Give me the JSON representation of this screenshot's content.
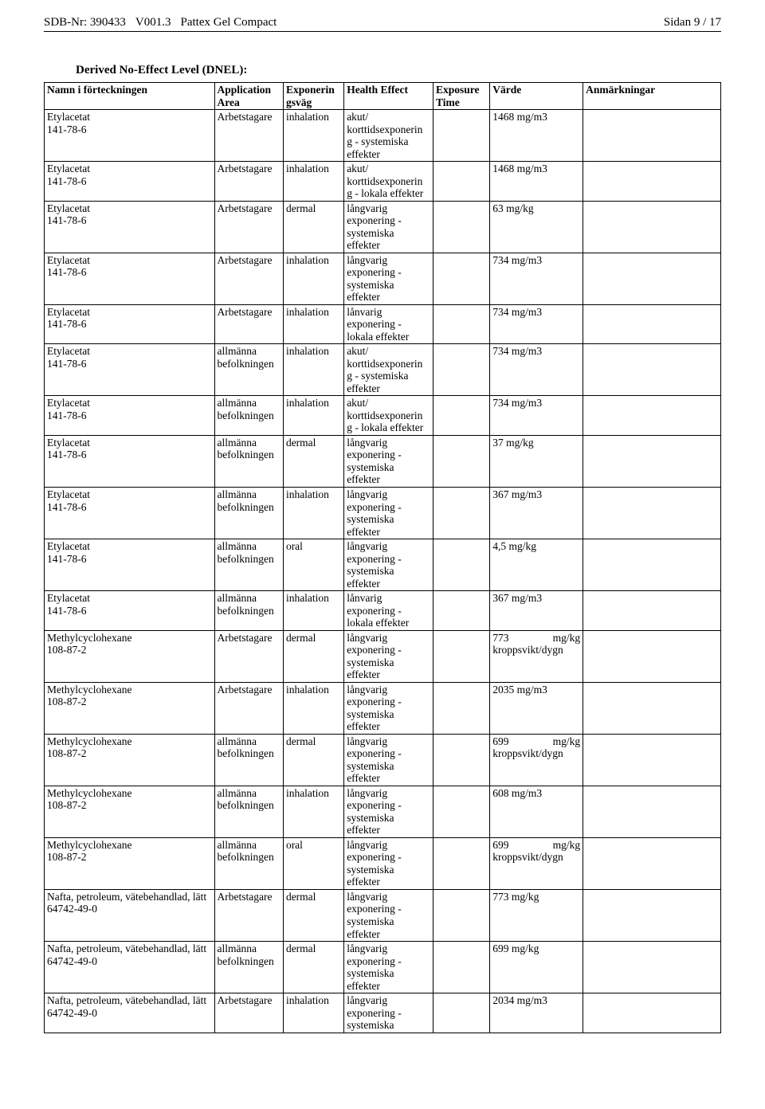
{
  "header": {
    "sdb_label": "SDB-Nr: 390433",
    "version": "V001.3",
    "product": "Pattex Gel Compact",
    "page_label": "Sidan 9 / 17"
  },
  "section_title": "Derived No-Effect Level (DNEL):",
  "columns": [
    "Namn i förteckningen",
    "Application Area",
    "Exponerin gsväg",
    "Health Effect",
    "Exposure Time",
    "Värde",
    "Anmärkningar"
  ],
  "rows": [
    {
      "c1": "Etylacetat\n141-78-6",
      "c2": "Arbetstagare",
      "c3": "inhalation",
      "c4": "akut/\nkorttidsexponerin\ng - systemiska\neffekter",
      "c5": "",
      "c6": "1468 mg/m3",
      "c7": ""
    },
    {
      "c1": "Etylacetat\n141-78-6",
      "c2": "Arbetstagare",
      "c3": "inhalation",
      "c4": "akut/\nkorttidsexponerin\ng - lokala effekter",
      "c5": "",
      "c6": "1468 mg/m3",
      "c7": ""
    },
    {
      "c1": "Etylacetat\n141-78-6",
      "c2": "Arbetstagare",
      "c3": "dermal",
      "c4": "långvarig\nexponering -\nsystemiska\neffekter",
      "c5": "",
      "c6": "63 mg/kg",
      "c7": ""
    },
    {
      "c1": "Etylacetat\n141-78-6",
      "c2": "Arbetstagare",
      "c3": "inhalation",
      "c4": "långvarig\nexponering -\nsystemiska\neffekter",
      "c5": "",
      "c6": "734 mg/m3",
      "c7": ""
    },
    {
      "c1": "Etylacetat\n141-78-6",
      "c2": "Arbetstagare",
      "c3": "inhalation",
      "c4": "lånvarig\nexponering -\nlokala effekter",
      "c5": "",
      "c6": "734 mg/m3",
      "c7": ""
    },
    {
      "c1": "Etylacetat\n141-78-6",
      "c2": "allmänna\nbefolkningen",
      "c3": "inhalation",
      "c4": "akut/\nkorttidsexponerin\ng - systemiska\neffekter",
      "c5": "",
      "c6": "734 mg/m3",
      "c7": ""
    },
    {
      "c1": "Etylacetat\n141-78-6",
      "c2": "allmänna\nbefolkningen",
      "c3": "inhalation",
      "c4": "akut/\nkorttidsexponerin\ng - lokala effekter",
      "c5": "",
      "c6": "734 mg/m3",
      "c7": ""
    },
    {
      "c1": "Etylacetat\n141-78-6",
      "c2": "allmänna\nbefolkningen",
      "c3": "dermal",
      "c4": "långvarig\nexponering -\nsystemiska\neffekter",
      "c5": "",
      "c6": "37 mg/kg",
      "c7": ""
    },
    {
      "c1": "Etylacetat\n141-78-6",
      "c2": "allmänna\nbefolkningen",
      "c3": "inhalation",
      "c4": "långvarig\nexponering -\nsystemiska\neffekter",
      "c5": "",
      "c6": "367 mg/m3",
      "c7": ""
    },
    {
      "c1": "Etylacetat\n141-78-6",
      "c2": "allmänna\nbefolkningen",
      "c3": "oral",
      "c4": "långvarig\nexponering -\nsystemiska\neffekter",
      "c5": "",
      "c6": "4,5 mg/kg",
      "c7": ""
    },
    {
      "c1": "Etylacetat\n141-78-6",
      "c2": "allmänna\nbefolkningen",
      "c3": "inhalation",
      "c4": "lånvarig\nexponering -\nlokala effekter",
      "c5": "",
      "c6": "367 mg/m3",
      "c7": ""
    },
    {
      "c1": "Methylcyclohexane\n108-87-2",
      "c2": "Arbetstagare",
      "c3": "dermal",
      "c4": "långvarig\nexponering -\nsystemiska\neffekter",
      "c5": "",
      "c6": "773 mg/kg kroppsvikt/dygn",
      "c7": ""
    },
    {
      "c1": "Methylcyclohexane\n108-87-2",
      "c2": "Arbetstagare",
      "c3": "inhalation",
      "c4": "långvarig\nexponering -\nsystemiska\neffekter",
      "c5": "",
      "c6": "2035 mg/m3",
      "c7": ""
    },
    {
      "c1": "Methylcyclohexane\n108-87-2",
      "c2": "allmänna\nbefolkningen",
      "c3": "dermal",
      "c4": "långvarig\nexponering -\nsystemiska\neffekter",
      "c5": "",
      "c6": "699 mg/kg kroppsvikt/dygn",
      "c7": ""
    },
    {
      "c1": "Methylcyclohexane\n108-87-2",
      "c2": "allmänna\nbefolkningen",
      "c3": "inhalation",
      "c4": "långvarig\nexponering -\nsystemiska\neffekter",
      "c5": "",
      "c6": "608 mg/m3",
      "c7": ""
    },
    {
      "c1": "Methylcyclohexane\n108-87-2",
      "c2": "allmänna\nbefolkningen",
      "c3": "oral",
      "c4": "långvarig\nexponering -\nsystemiska\neffekter",
      "c5": "",
      "c6": "699 mg/kg kroppsvikt/dygn",
      "c7": ""
    },
    {
      "c1": "Nafta, petroleum, vätebehandlad, lätt\n64742-49-0",
      "c2": "Arbetstagare",
      "c3": "dermal",
      "c4": "långvarig\nexponering -\nsystemiska\neffekter",
      "c5": "",
      "c6": "773 mg/kg",
      "c7": ""
    },
    {
      "c1": "Nafta, petroleum, vätebehandlad, lätt\n64742-49-0",
      "c2": "allmänna\nbefolkningen",
      "c3": "dermal",
      "c4": "långvarig\nexponering -\nsystemiska\neffekter",
      "c5": "",
      "c6": "699 mg/kg",
      "c7": ""
    },
    {
      "c1": "Nafta, petroleum, vätebehandlad, lätt\n64742-49-0",
      "c2": "Arbetstagare",
      "c3": "inhalation",
      "c4": "långvarig\nexponering -\nsystemiska",
      "c5": "",
      "c6": "2034 mg/m3",
      "c7": ""
    }
  ]
}
